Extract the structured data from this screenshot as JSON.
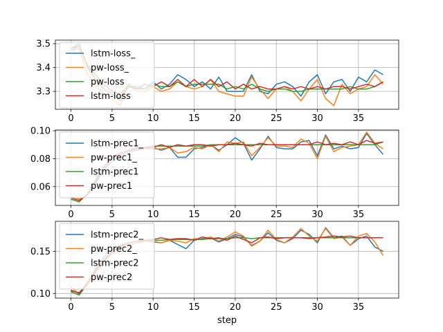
{
  "chart_data": [
    {
      "type": "line",
      "xlim": [
        -1.9,
        39.9
      ],
      "ylim": [
        3.225,
        3.515
      ],
      "xticks": [
        0,
        5,
        10,
        15,
        20,
        25,
        30,
        35
      ],
      "yticks": [
        3.3,
        3.4,
        3.5
      ],
      "ytick_labels": [
        "3.3",
        "3.4",
        "3.5"
      ],
      "grid": true,
      "legend": "upper-left",
      "series": [
        {
          "name": "lstm-loss_",
          "color": "#1f77b4",
          "values": [
            3.47,
            3.49,
            3.41,
            3.35,
            3.31,
            3.29,
            3.26,
            3.32,
            3.32,
            3.31,
            3.34,
            3.31,
            3.33,
            3.37,
            3.35,
            3.32,
            3.34,
            3.31,
            3.36,
            3.3,
            3.3,
            3.3,
            3.37,
            3.3,
            3.29,
            3.33,
            3.34,
            3.32,
            3.28,
            3.34,
            3.37,
            3.29,
            3.34,
            3.35,
            3.3,
            3.36,
            3.34,
            3.39,
            3.37
          ]
        },
        {
          "name": "pw-loss_",
          "color": "#ff7f0e",
          "values": [
            3.47,
            3.48,
            3.37,
            3.33,
            3.29,
            3.27,
            3.24,
            3.33,
            3.3,
            3.3,
            3.32,
            3.3,
            3.31,
            3.34,
            3.32,
            3.31,
            3.32,
            3.35,
            3.3,
            3.29,
            3.28,
            3.28,
            3.36,
            3.31,
            3.27,
            3.31,
            3.32,
            3.3,
            3.26,
            3.31,
            3.35,
            3.27,
            3.24,
            3.33,
            3.29,
            3.31,
            3.32,
            3.37,
            3.33
          ]
        },
        {
          "name": "pw-loss",
          "color": "#2ca02c",
          "values": [
            3.48,
            3.5,
            3.4,
            3.35,
            3.31,
            3.29,
            3.27,
            3.33,
            3.31,
            3.31,
            3.33,
            3.32,
            3.32,
            3.34,
            3.32,
            3.33,
            3.33,
            3.33,
            3.33,
            3.31,
            3.32,
            3.31,
            3.33,
            3.31,
            3.3,
            3.31,
            3.31,
            3.3,
            3.3,
            3.31,
            3.31,
            3.31,
            3.31,
            3.31,
            3.32,
            3.31,
            3.31,
            3.32,
            3.34
          ]
        },
        {
          "name": "lstm-loss",
          "color": "#d62728",
          "values": [
            3.48,
            3.49,
            3.41,
            3.37,
            3.33,
            3.3,
            3.29,
            3.32,
            3.31,
            3.33,
            3.32,
            3.34,
            3.32,
            3.35,
            3.32,
            3.35,
            3.32,
            3.35,
            3.32,
            3.34,
            3.31,
            3.33,
            3.31,
            3.32,
            3.31,
            3.31,
            3.32,
            3.31,
            3.32,
            3.31,
            3.32,
            3.31,
            3.32,
            3.32,
            3.31,
            3.32,
            3.33,
            3.32,
            3.34
          ]
        }
      ]
    },
    {
      "type": "line",
      "xlim": [
        -1.9,
        39.9
      ],
      "ylim": [
        0.0465,
        0.1005
      ],
      "xticks": [
        0,
        5,
        10,
        15,
        20,
        25,
        30,
        35
      ],
      "yticks": [
        0.06,
        0.08,
        0.1
      ],
      "ytick_labels": [
        "0.06",
        "0.08",
        "0.10"
      ],
      "grid": true,
      "legend": "upper-left",
      "series": [
        {
          "name": "lstm-prec1_",
          "color": "#1f77b4",
          "values": [
            0.052,
            0.05,
            0.054,
            0.062,
            0.072,
            0.078,
            0.082,
            0.085,
            0.086,
            0.087,
            0.088,
            0.086,
            0.088,
            0.081,
            0.081,
            0.087,
            0.088,
            0.09,
            0.086,
            0.09,
            0.095,
            0.091,
            0.079,
            0.087,
            0.096,
            0.088,
            0.087,
            0.087,
            0.092,
            0.093,
            0.082,
            0.097,
            0.087,
            0.089,
            0.087,
            0.088,
            0.098,
            0.09,
            0.083
          ]
        },
        {
          "name": "pw-prec1_",
          "color": "#ff7f0e",
          "values": [
            0.053,
            0.051,
            0.054,
            0.064,
            0.073,
            0.08,
            0.083,
            0.086,
            0.087,
            0.087,
            0.087,
            0.087,
            0.088,
            0.084,
            0.085,
            0.088,
            0.087,
            0.09,
            0.085,
            0.092,
            0.091,
            0.092,
            0.082,
            0.088,
            0.095,
            0.089,
            0.089,
            0.088,
            0.094,
            0.091,
            0.08,
            0.096,
            0.085,
            0.088,
            0.089,
            0.09,
            0.099,
            0.091,
            0.087
          ]
        },
        {
          "name": "lstm-prec1",
          "color": "#2ca02c",
          "values": [
            0.051,
            0.049,
            0.055,
            0.065,
            0.074,
            0.081,
            0.084,
            0.086,
            0.088,
            0.088,
            0.089,
            0.089,
            0.089,
            0.089,
            0.089,
            0.089,
            0.089,
            0.09,
            0.09,
            0.09,
            0.09,
            0.09,
            0.09,
            0.09,
            0.09,
            0.09,
            0.09,
            0.09,
            0.09,
            0.09,
            0.09,
            0.09,
            0.09,
            0.09,
            0.09,
            0.09,
            0.09,
            0.09,
            0.092
          ]
        },
        {
          "name": "pw-prec1",
          "color": "#d62728",
          "values": [
            0.052,
            0.05,
            0.054,
            0.063,
            0.074,
            0.081,
            0.084,
            0.086,
            0.087,
            0.088,
            0.088,
            0.09,
            0.088,
            0.09,
            0.089,
            0.09,
            0.09,
            0.089,
            0.09,
            0.09,
            0.091,
            0.09,
            0.089,
            0.091,
            0.09,
            0.09,
            0.09,
            0.09,
            0.09,
            0.09,
            0.092,
            0.09,
            0.091,
            0.09,
            0.092,
            0.09,
            0.093,
            0.091,
            0.092
          ]
        }
      ]
    },
    {
      "type": "line",
      "xlim": [
        -1.9,
        39.9
      ],
      "ylim": [
        0.0945,
        0.1855
      ],
      "xticks": [
        0,
        5,
        10,
        15,
        20,
        25,
        30,
        35
      ],
      "xtick_labels": [
        "0",
        "5",
        "10",
        "15",
        "20",
        "25",
        "30",
        "35"
      ],
      "yticks": [
        0.1,
        0.15
      ],
      "ytick_labels": [
        "0.10",
        "0.15"
      ],
      "grid": true,
      "legend": "upper-left",
      "xlabel": "step",
      "series": [
        {
          "name": "lstm-prec2_",
          "color": "#1f77b4",
          "values": [
            0.103,
            0.101,
            0.112,
            0.126,
            0.138,
            0.148,
            0.155,
            0.16,
            0.162,
            0.162,
            0.161,
            0.16,
            0.163,
            0.158,
            0.153,
            0.163,
            0.165,
            0.166,
            0.161,
            0.165,
            0.17,
            0.167,
            0.157,
            0.162,
            0.172,
            0.163,
            0.16,
            0.165,
            0.175,
            0.17,
            0.16,
            0.178,
            0.166,
            0.168,
            0.157,
            0.165,
            0.168,
            0.155,
            0.15
          ]
        },
        {
          "name": "pw-prec2_",
          "color": "#ff7f0e",
          "values": [
            0.108,
            0.099,
            0.11,
            0.124,
            0.137,
            0.147,
            0.153,
            0.158,
            0.16,
            0.162,
            0.162,
            0.16,
            0.163,
            0.162,
            0.16,
            0.165,
            0.164,
            0.167,
            0.162,
            0.167,
            0.173,
            0.168,
            0.156,
            0.162,
            0.175,
            0.164,
            0.16,
            0.167,
            0.177,
            0.168,
            0.162,
            0.177,
            0.165,
            0.167,
            0.157,
            0.168,
            0.171,
            0.161,
            0.145
          ]
        },
        {
          "name": "lstm-prec2",
          "color": "#2ca02c",
          "values": [
            0.102,
            0.098,
            0.112,
            0.13,
            0.143,
            0.152,
            0.157,
            0.16,
            0.162,
            0.163,
            0.163,
            0.163,
            0.164,
            0.164,
            0.164,
            0.164,
            0.164,
            0.165,
            0.165,
            0.165,
            0.166,
            0.166,
            0.165,
            0.166,
            0.166,
            0.166,
            0.166,
            0.166,
            0.166,
            0.166,
            0.166,
            0.166,
            0.166,
            0.166,
            0.166,
            0.166,
            0.166,
            0.166,
            0.166
          ]
        },
        {
          "name": "pw-prec2",
          "color": "#d62728",
          "values": [
            0.104,
            0.1,
            0.113,
            0.128,
            0.14,
            0.15,
            0.156,
            0.16,
            0.162,
            0.163,
            0.164,
            0.166,
            0.164,
            0.165,
            0.165,
            0.163,
            0.167,
            0.165,
            0.166,
            0.163,
            0.168,
            0.164,
            0.16,
            0.166,
            0.167,
            0.165,
            0.166,
            0.166,
            0.166,
            0.165,
            0.166,
            0.167,
            0.168,
            0.167,
            0.168,
            0.166,
            0.166,
            0.166,
            0.166
          ]
        }
      ]
    }
  ]
}
